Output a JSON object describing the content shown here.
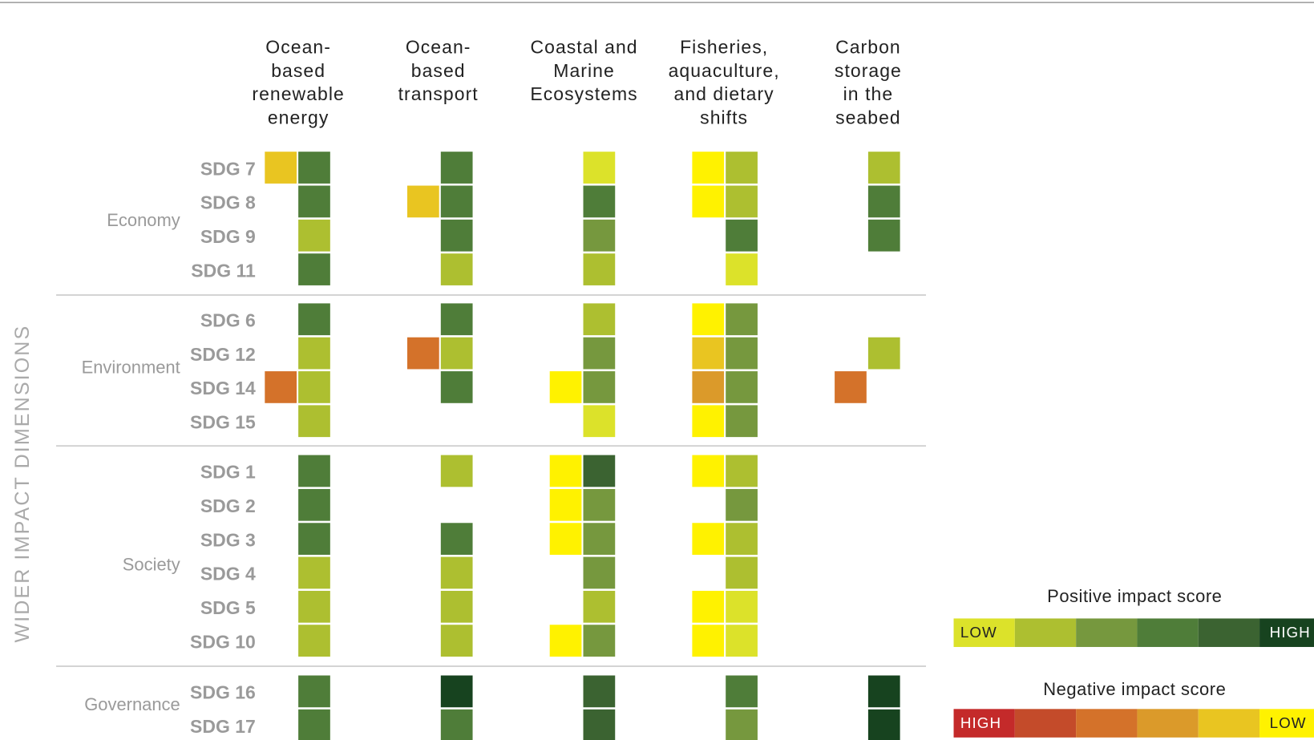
{
  "axis_title": "WIDER IMPACT DIMENSIONS",
  "columns": [
    [
      "Ocean-",
      "based",
      "renewable",
      "energy"
    ],
    [
      "Ocean-",
      "based",
      "transport"
    ],
    [
      "Coastal and",
      "Marine",
      "Ecosystems"
    ],
    [
      "Fisheries,",
      "aquaculture,",
      "and dietary",
      "shifts"
    ],
    [
      "Carbon",
      "storage",
      "in the",
      "seabed"
    ]
  ],
  "groups": [
    {
      "label": "Economy",
      "rows": [
        {
          "label": "SDG 7",
          "cells": [
            {
              "negative": 2,
              "positive": 4
            },
            {
              "negative": null,
              "positive": 4
            },
            {
              "negative": null,
              "positive": 1
            },
            {
              "negative": 1,
              "positive": 2
            },
            {
              "negative": null,
              "positive": 2
            }
          ]
        },
        {
          "label": "SDG 8",
          "cells": [
            {
              "negative": null,
              "positive": 4
            },
            {
              "negative": 2,
              "positive": 4
            },
            {
              "negative": null,
              "positive": 4
            },
            {
              "negative": 1,
              "positive": 2
            },
            {
              "negative": null,
              "positive": 4
            }
          ]
        },
        {
          "label": "SDG 9",
          "cells": [
            {
              "negative": null,
              "positive": 2
            },
            {
              "negative": null,
              "positive": 4
            },
            {
              "negative": null,
              "positive": 3
            },
            {
              "negative": null,
              "positive": 4
            },
            {
              "negative": null,
              "positive": 4
            }
          ]
        },
        {
          "label": "SDG 11",
          "cells": [
            {
              "negative": null,
              "positive": 4
            },
            {
              "negative": null,
              "positive": 2
            },
            {
              "negative": null,
              "positive": 2
            },
            {
              "negative": null,
              "positive": 1
            },
            {
              "negative": null,
              "positive": null
            }
          ]
        }
      ]
    },
    {
      "label": "Environment",
      "rows": [
        {
          "label": "SDG 6",
          "cells": [
            {
              "negative": null,
              "positive": 4
            },
            {
              "negative": null,
              "positive": 4
            },
            {
              "negative": null,
              "positive": 2
            },
            {
              "negative": 1,
              "positive": 3
            },
            {
              "negative": null,
              "positive": null
            }
          ]
        },
        {
          "label": "SDG 12",
          "cells": [
            {
              "negative": null,
              "positive": 2
            },
            {
              "negative": 4,
              "positive": 2
            },
            {
              "negative": null,
              "positive": 3
            },
            {
              "negative": 2,
              "positive": 3
            },
            {
              "negative": null,
              "positive": 2
            }
          ]
        },
        {
          "label": "SDG 14",
          "cells": [
            {
              "negative": 4,
              "positive": 2
            },
            {
              "negative": null,
              "positive": 4
            },
            {
              "negative": 1,
              "positive": 3
            },
            {
              "negative": 3,
              "positive": 3
            },
            {
              "negative": 4,
              "positive": null
            }
          ]
        },
        {
          "label": "SDG 15",
          "cells": [
            {
              "negative": null,
              "positive": 2
            },
            {
              "negative": null,
              "positive": null
            },
            {
              "negative": null,
              "positive": 1
            },
            {
              "negative": 1,
              "positive": 3
            },
            {
              "negative": null,
              "positive": null
            }
          ]
        }
      ]
    },
    {
      "label": "Society",
      "rows": [
        {
          "label": "SDG 1",
          "cells": [
            {
              "negative": null,
              "positive": 4
            },
            {
              "negative": null,
              "positive": 2
            },
            {
              "negative": 1,
              "positive": 5
            },
            {
              "negative": 1,
              "positive": 2
            },
            {
              "negative": null,
              "positive": null
            }
          ]
        },
        {
          "label": "SDG 2",
          "cells": [
            {
              "negative": null,
              "positive": 4
            },
            {
              "negative": null,
              "positive": null
            },
            {
              "negative": 1,
              "positive": 3
            },
            {
              "negative": null,
              "positive": 3
            },
            {
              "negative": null,
              "positive": null
            }
          ]
        },
        {
          "label": "SDG 3",
          "cells": [
            {
              "negative": null,
              "positive": 4
            },
            {
              "negative": null,
              "positive": 4
            },
            {
              "negative": 1,
              "positive": 3
            },
            {
              "negative": 1,
              "positive": 2
            },
            {
              "negative": null,
              "positive": null
            }
          ]
        },
        {
          "label": "SDG 4",
          "cells": [
            {
              "negative": null,
              "positive": 2
            },
            {
              "negative": null,
              "positive": 2
            },
            {
              "negative": null,
              "positive": 3
            },
            {
              "negative": null,
              "positive": 2
            },
            {
              "negative": null,
              "positive": null
            }
          ]
        },
        {
          "label": "SDG 5",
          "cells": [
            {
              "negative": null,
              "positive": 2
            },
            {
              "negative": null,
              "positive": 2
            },
            {
              "negative": null,
              "positive": 2
            },
            {
              "negative": 1,
              "positive": 1
            },
            {
              "negative": null,
              "positive": null
            }
          ]
        },
        {
          "label": "SDG 10",
          "cells": [
            {
              "negative": null,
              "positive": 2
            },
            {
              "negative": null,
              "positive": 2
            },
            {
              "negative": 1,
              "positive": 3
            },
            {
              "negative": 1,
              "positive": 1
            },
            {
              "negative": null,
              "positive": null
            }
          ]
        }
      ]
    },
    {
      "label": "Governance",
      "rows": [
        {
          "label": "SDG 16",
          "cells": [
            {
              "negative": null,
              "positive": 4
            },
            {
              "negative": null,
              "positive": 6
            },
            {
              "negative": null,
              "positive": 5
            },
            {
              "negative": null,
              "positive": 4
            },
            {
              "negative": null,
              "positive": 6
            }
          ]
        },
        {
          "label": "SDG 17",
          "cells": [
            {
              "negative": null,
              "positive": 4
            },
            {
              "negative": null,
              "positive": 4
            },
            {
              "negative": null,
              "positive": 5
            },
            {
              "negative": null,
              "positive": 3
            },
            {
              "negative": null,
              "positive": 6
            }
          ]
        }
      ]
    }
  ],
  "legend": {
    "positive": {
      "title": "Positive impact score",
      "low": "LOW",
      "high": "HIGH",
      "colors": [
        "#dce22a",
        "#adbf30",
        "#76983e",
        "#4f7d39",
        "#3b6331",
        "#17431f"
      ]
    },
    "negative": {
      "title": "Negative impact score",
      "high": "HIGH",
      "low": "LOW",
      "colors": [
        "#c42a2a",
        "#c44b2a",
        "#d4722a",
        "#db9a2a",
        "#e9c521",
        "#fff200"
      ]
    }
  }
}
